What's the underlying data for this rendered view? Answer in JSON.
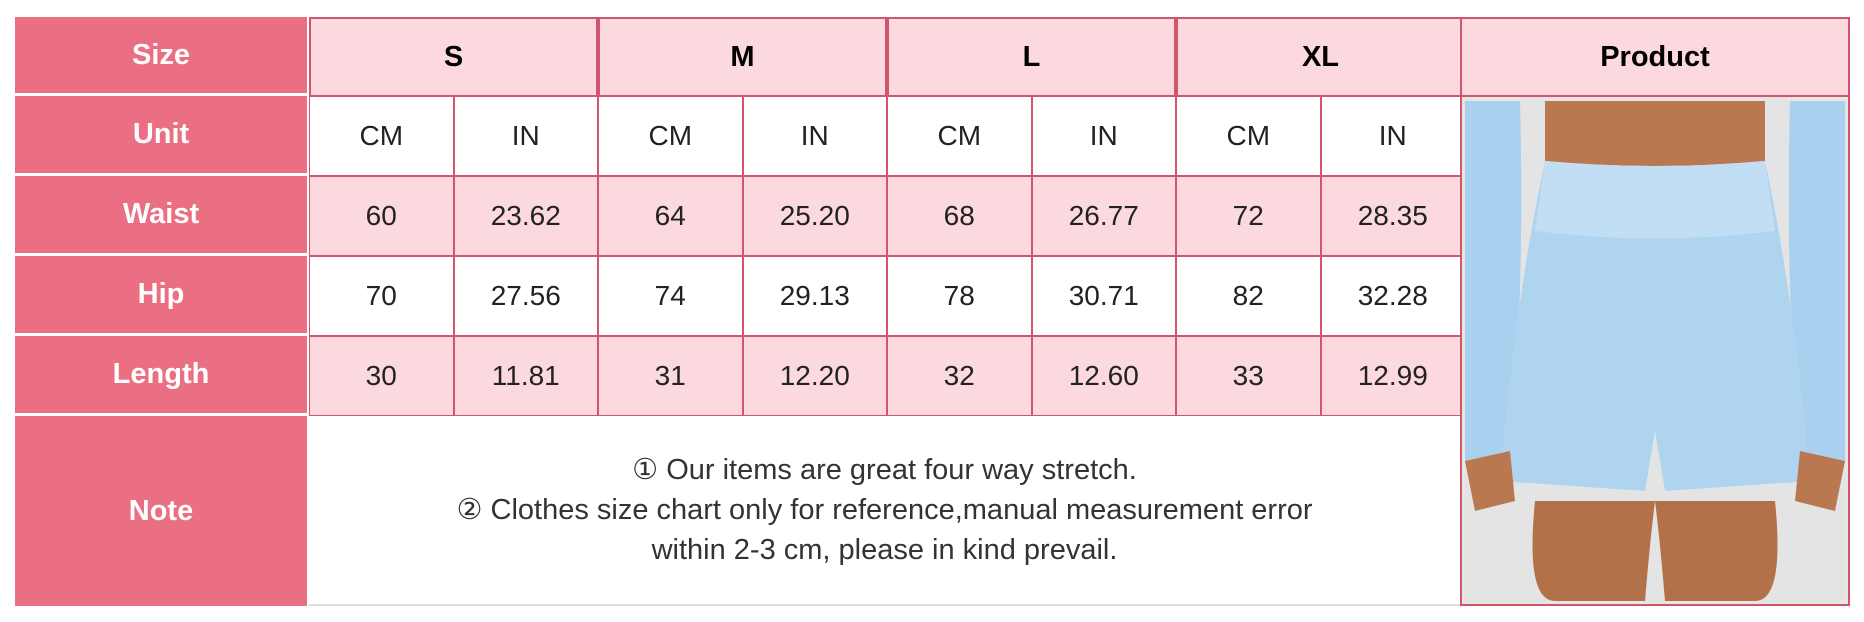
{
  "labels": {
    "size": "Size",
    "unit": "Unit",
    "waist": "Waist",
    "hip": "Hip",
    "length": "Length",
    "note": "Note",
    "product": "Product"
  },
  "sizes": [
    "S",
    "M",
    "L",
    "XL"
  ],
  "units": [
    "CM",
    "IN",
    "CM",
    "IN",
    "CM",
    "IN",
    "CM",
    "IN"
  ],
  "rows": {
    "waist": [
      "60",
      "23.62",
      "64",
      "25.20",
      "68",
      "26.77",
      "72",
      "28.35"
    ],
    "hip": [
      "70",
      "27.56",
      "74",
      "29.13",
      "78",
      "30.71",
      "82",
      "32.28"
    ],
    "length": [
      "30",
      "11.81",
      "31",
      "12.20",
      "32",
      "12.60",
      "33",
      "12.99"
    ]
  },
  "notes": [
    "① Our items are great four way stretch.",
    "② Clothes size chart only for reference,manual measurement error",
    "within 2-3 cm, please in kind prevail."
  ],
  "product_image": "light-blue-high-waist-shorts",
  "colors": {
    "label_bg": "#ea6f82",
    "header_bg": "#fbd9df",
    "border": "#d0566e"
  }
}
